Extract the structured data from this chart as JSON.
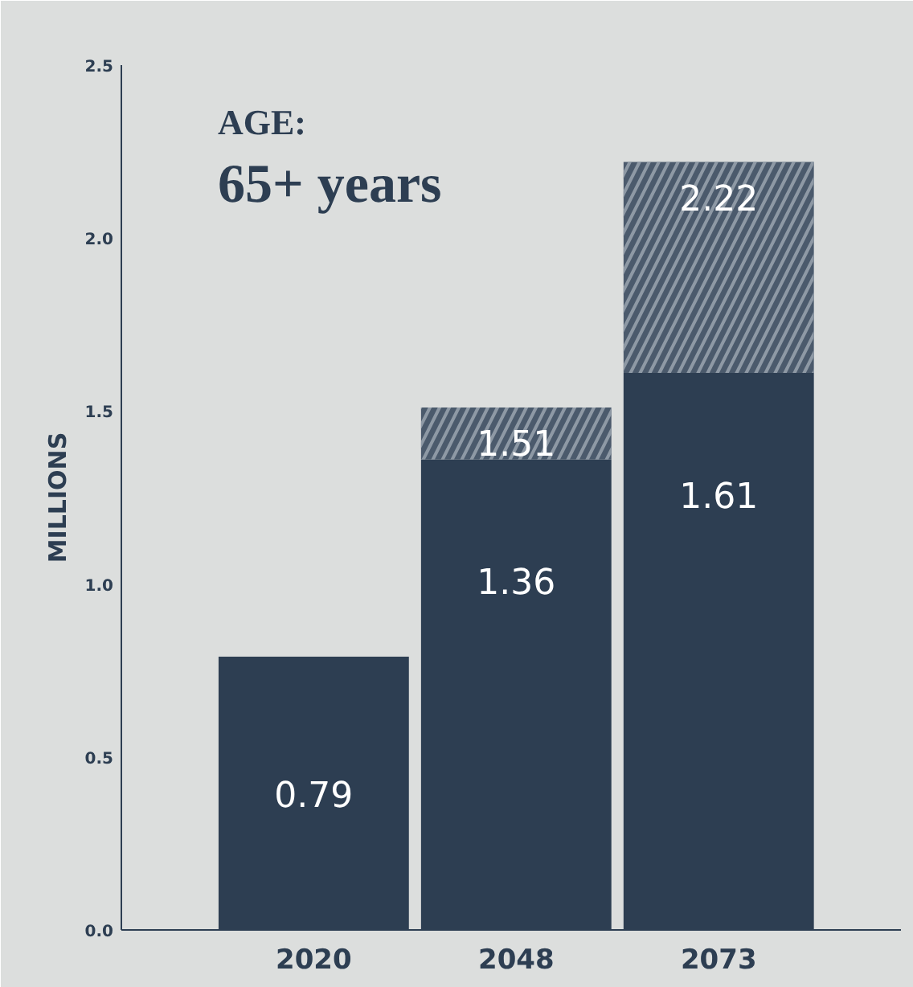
{
  "chart_data": {
    "type": "bar",
    "title": "AGE:",
    "subtitle": "65+ years",
    "ylabel": "MILLIONS",
    "categories": [
      "2020",
      "2048",
      "2073"
    ],
    "stacked": true,
    "series": [
      {
        "color": "#2d3e52",
        "values": [
          0.79,
          1.36,
          1.61
        ],
        "value_labels": [
          "0.79",
          "1.36",
          "1.61"
        ]
      },
      {
        "color": "#4b5a6c",
        "values": [
          null,
          0.15,
          0.61
        ]
      }
    ],
    "totals": [
      null,
      "1.51",
      "2.22"
    ],
    "ylim": [
      0,
      2.5
    ],
    "yticks": [
      {
        "value": 0,
        "label": "0.0"
      },
      {
        "value": 0.5,
        "label": "0.5"
      },
      {
        "value": 1,
        "label": "1.0"
      },
      {
        "value": 1.5,
        "label": "1.5"
      },
      {
        "value": 2,
        "label": "2.0"
      },
      {
        "value": 2.5,
        "label": "2.5"
      }
    ],
    "grid": false
  }
}
